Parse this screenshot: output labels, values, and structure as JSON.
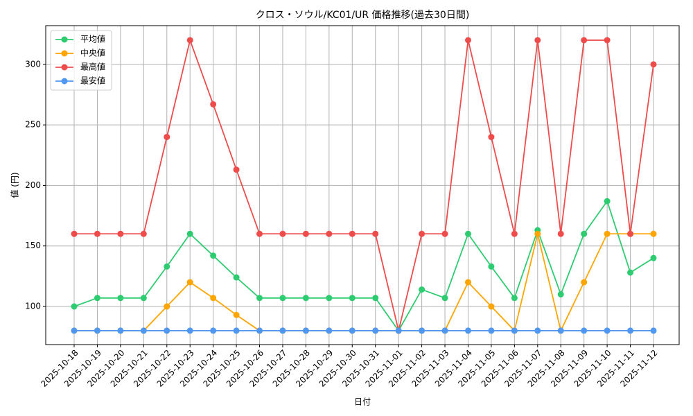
{
  "chart_data": {
    "type": "line",
    "title": "クロス・ソウル/KC01/UR 価格推移(過去30日間)",
    "x_label": "日付",
    "y_label": "値 (円)",
    "categories": [
      "2025-10-18",
      "2025-10-19",
      "2025-10-20",
      "2025-10-21",
      "2025-10-22",
      "2025-10-23",
      "2025-10-24",
      "2025-10-25",
      "2025-10-26",
      "2025-10-27",
      "2025-10-28",
      "2025-10-29",
      "2025-10-30",
      "2025-10-31",
      "2025-11-01",
      "2025-11-02",
      "2025-11-03",
      "2025-11-04",
      "2025-11-05",
      "2025-11-06",
      "2025-11-07",
      "2025-11-08",
      "2025-11-09",
      "2025-11-10",
      "2025-11-11",
      "2025-11-12"
    ],
    "series": [
      {
        "name": "平均値",
        "color": "#2ecc71",
        "values": [
          100,
          107,
          107,
          107,
          133,
          160,
          142,
          124,
          107,
          107,
          107,
          107,
          107,
          107,
          80,
          114,
          107,
          160,
          133,
          107,
          163,
          110,
          160,
          187,
          128,
          140
        ]
      },
      {
        "name": "中央値",
        "color": "#ffa500",
        "values": [
          80,
          80,
          80,
          80,
          100,
          120,
          107,
          93,
          80,
          80,
          80,
          80,
          80,
          80,
          80,
          80,
          80,
          120,
          100,
          80,
          160,
          80,
          120,
          160,
          160,
          160
        ]
      },
      {
        "name": "最高値",
        "color": "#ef4b4b",
        "values": [
          160,
          160,
          160,
          160,
          240,
          320,
          267,
          213,
          160,
          160,
          160,
          160,
          160,
          160,
          80,
          160,
          160,
          320,
          240,
          160,
          320,
          160,
          320,
          320,
          160,
          300
        ]
      },
      {
        "name": "最安値",
        "color": "#4f97f0",
        "values": [
          80,
          80,
          80,
          80,
          80,
          80,
          80,
          80,
          80,
          80,
          80,
          80,
          80,
          80,
          80,
          80,
          80,
          80,
          80,
          80,
          80,
          80,
          80,
          80,
          80,
          80
        ]
      }
    ],
    "ylim": [
      68.5,
      332
    ],
    "yticks": [
      100,
      150,
      200,
      250,
      300
    ],
    "grid": true,
    "legend": "upper-left"
  }
}
